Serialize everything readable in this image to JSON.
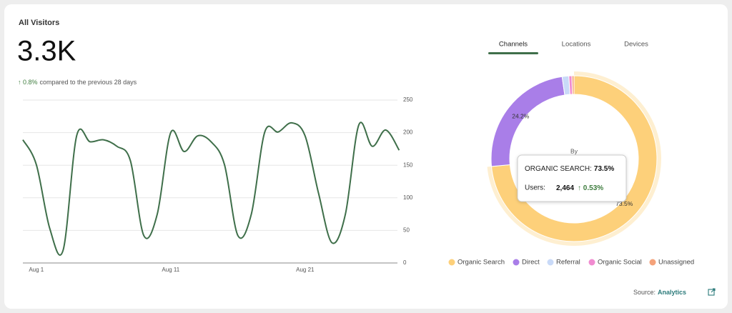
{
  "header": {
    "title": "All Visitors",
    "value": "3.3K",
    "change": "↑ 0.8%",
    "comparison": "compared to the previous 28 days"
  },
  "tabs": [
    "Channels",
    "Locations",
    "Devices"
  ],
  "chart_data": [
    {
      "type": "line",
      "categories": [
        null,
        "Aug 1",
        null,
        null,
        null,
        null,
        null,
        null,
        null,
        null,
        null,
        "Aug 11",
        null,
        null,
        null,
        null,
        null,
        null,
        null,
        null,
        null,
        "Aug 21",
        null,
        null,
        null,
        null,
        null,
        null,
        null
      ],
      "series": [
        {
          "name": "Visitors",
          "color": "#3f6f4a",
          "values": [
            189,
            151,
            53,
            20,
            195,
            186,
            189,
            179,
            157,
            42,
            75,
            200,
            171,
            195,
            186,
            151,
            42,
            75,
            201,
            201,
            215,
            195,
            107,
            31,
            75,
            212,
            179,
            204,
            173
          ]
        }
      ],
      "ylim": [
        0,
        250
      ],
      "yticks": [
        0,
        50,
        100,
        150,
        200,
        250
      ],
      "grid": true
    },
    {
      "type": "pie",
      "categories": [
        "Organic Search",
        "Direct",
        "Referral",
        "Organic Social",
        "Unassigned"
      ],
      "values": [
        73.5,
        24.2,
        1.3,
        0.6,
        0.4
      ],
      "value_labels": [
        "73.5%",
        "24.2%",
        null,
        null,
        null
      ],
      "colors": [
        "#fdd07a",
        "#a97ee8",
        "#c9daf8",
        "#f08bd0",
        "#f4a27a"
      ],
      "center_label": "By"
    }
  ],
  "tooltip": {
    "label": "ORGANIC SEARCH:",
    "value": "73.5%",
    "metric": "Users:",
    "count": "2,464",
    "change": "↑ 0.53%"
  },
  "source": {
    "label": "Source:",
    "link": "Analytics"
  }
}
